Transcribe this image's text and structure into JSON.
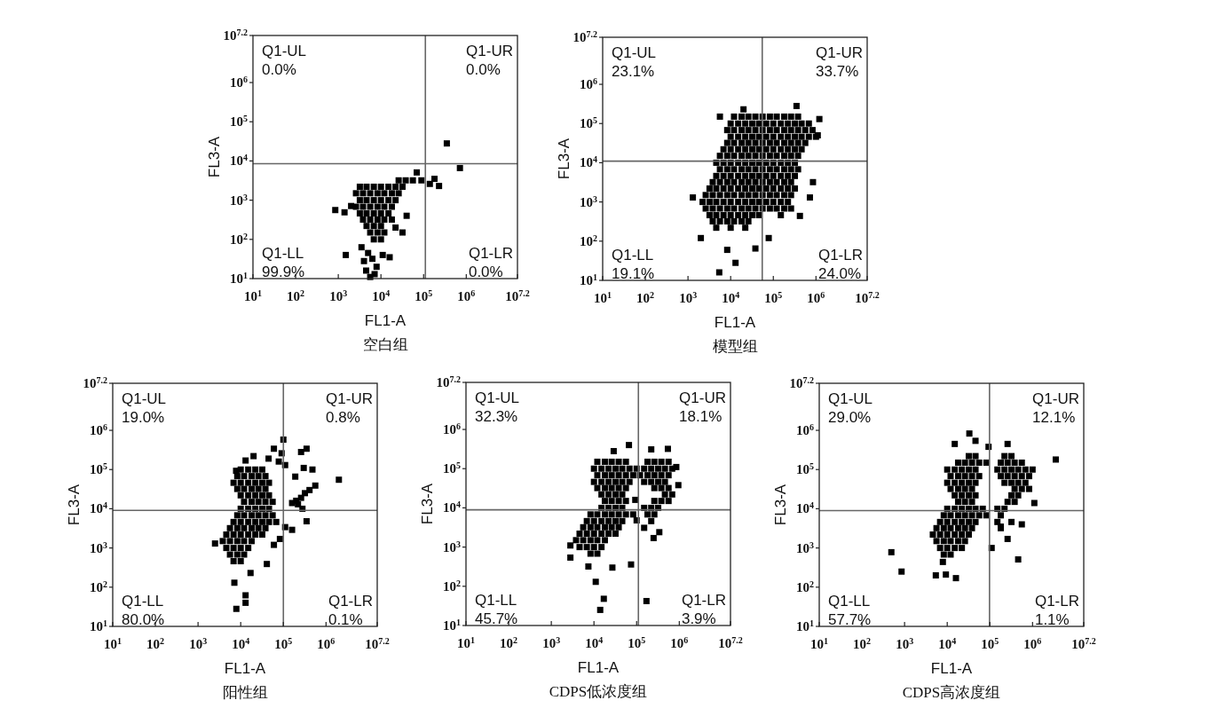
{
  "chart_data": [
    {
      "type": "scatter",
      "title": "空白组",
      "xlabel": "FL1-A",
      "ylabel": "FL3-A",
      "log": "xy",
      "marker": "square",
      "color": "#000000",
      "xlim": [
        10,
        15848932
      ],
      "ylim": [
        10,
        15848932
      ],
      "xticks": [
        {
          "value": 10,
          "label": "10$^{1}$"
        },
        {
          "value": 100,
          "label": "10$^{2}$"
        },
        {
          "value": 1000,
          "label": "10$^{3}$"
        },
        {
          "value": 10000,
          "label": "10$^{4}$"
        },
        {
          "value": 100000,
          "label": "10$^{5}$"
        },
        {
          "value": 1000000,
          "label": "10$^{6}$"
        },
        {
          "value": 15848932,
          "label": "10$^{7.2}$"
        }
      ],
      "yticks": [
        {
          "value": 10,
          "label": "10$^{1}$"
        },
        {
          "value": 100,
          "label": "10$^{2}$"
        },
        {
          "value": 1000,
          "label": "10$^{3}$"
        },
        {
          "value": 10000,
          "label": "10$^{4}$"
        },
        {
          "value": 100000,
          "label": "10$^{5}$"
        },
        {
          "value": 1000000,
          "label": "10$^{6}$"
        },
        {
          "value": 15848932,
          "label": "10$^{7.2}$"
        }
      ],
      "ref_lines": [
        {
          "axis": "x",
          "value": 110000.0,
          "color": "#666666"
        },
        {
          "axis": "y",
          "value": 8500.0,
          "color": "#666666"
        }
      ],
      "annotations": [
        "Q1-UL\n0.0%",
        "Q1-UR\n0.0%",
        "Q1-LL\n99.9%",
        "Q1-LR\n0.0%"
      ],
      "x": [
        26000.0,
        38000.0,
        56000.0,
        3200.0,
        4600.0,
        6800.0,
        10000.0,
        15000.0,
        22000.0,
        32000.0,
        2600.0,
        3800.0,
        5600.0,
        8300.0,
        12000.0,
        18000.0,
        26000.0,
        3200.0,
        4600.0,
        6800.0,
        10000.0,
        15000.0,
        22000.0,
        2600.0,
        3800.0,
        5600.0,
        8300.0,
        12000.0,
        18000.0,
        3200.0,
        4600.0,
        6800.0,
        10000.0,
        15000.0,
        3800.0,
        5600.0,
        8300.0,
        12000.0,
        18000.0,
        4600.0,
        6800.0,
        10000.0,
        5600.0,
        8300.0,
        12000.0,
        6800.0,
        10000.0,
        3500.0,
        5000.0,
        4000.0,
        6300.0,
        7900.0,
        4500.0,
        7100.0,
        11000.0,
        16000.0,
        5600.0,
        850,
        1400.0,
        1500.0,
        350000.0,
        710000.0,
        180000.0,
        230000.0,
        140000.0,
        69000.0,
        32000.0,
        89000.0,
        40000.0,
        22000.0,
        2000.0
      ],
      "values": [
        3200.0,
        3200.0,
        3200.0,
        2200.0,
        2200.0,
        2200.0,
        2200.0,
        2200.0,
        2200.0,
        2200.0,
        1500.0,
        1500.0,
        1500.0,
        1500.0,
        1500.0,
        1500.0,
        1500.0,
        1000.0,
        1000.0,
        1000.0,
        1000.0,
        1000.0,
        1000.0,
        680,
        680,
        680,
        680,
        680,
        680,
        460,
        460,
        460,
        460,
        460,
        320,
        320,
        320,
        320,
        320,
        220,
        220,
        220,
        150,
        150,
        150,
        100,
        100,
        63,
        45,
        28,
        32,
        20,
        16,
        13,
        40,
        35,
        11,
        560,
        490,
        40,
        28000.0,
        6600.0,
        3500.0,
        2300.0,
        2600.0,
        5100.0,
        150,
        3200.0,
        400,
        200,
        710
      ]
    },
    {
      "type": "scatter",
      "title": "模型组",
      "xlabel": "FL1-A",
      "ylabel": "FL3-A",
      "log": "xy",
      "marker": "square",
      "color": "#000000",
      "xlim": [
        10,
        15848932
      ],
      "ylim": [
        10,
        15848932
      ],
      "xticks": [
        {
          "value": 10,
          "label": "10$^{1}$"
        },
        {
          "value": 100,
          "label": "10$^{2}$"
        },
        {
          "value": 1000,
          "label": "10$^{3}$"
        },
        {
          "value": 10000,
          "label": "10$^{4}$"
        },
        {
          "value": 100000,
          "label": "10$^{5}$"
        },
        {
          "value": 1000000,
          "label": "10$^{6}$"
        },
        {
          "value": 15848932,
          "label": "10$^{7.2}$"
        }
      ],
      "yticks": [
        {
          "value": 10,
          "label": "10$^{1}$"
        },
        {
          "value": 100,
          "label": "10$^{2}$"
        },
        {
          "value": 1000,
          "label": "10$^{3}$"
        },
        {
          "value": 10000,
          "label": "10$^{4}$"
        },
        {
          "value": 100000,
          "label": "10$^{5}$"
        },
        {
          "value": 1000000,
          "label": "10$^{6}$"
        },
        {
          "value": 15848932,
          "label": "10$^{7.2}$"
        }
      ],
      "ref_lines": [
        {
          "axis": "x",
          "value": 55000.0,
          "color": "#666666"
        },
        {
          "axis": "y",
          "value": 11000.0,
          "color": "#666666"
        }
      ],
      "annotations": [
        "Q1-UL\n23.1%",
        "Q1-UR\n33.7%",
        "Q1-LL\n19.1%",
        "Q1-LR\n24.0%"
      ],
      "x": [
        12000.0,
        18000.0,
        26000.0,
        38000.0,
        56000.0,
        83000.0,
        120000.0,
        180000.0,
        260000.0,
        380000.0,
        10000.0,
        15000.0,
        22000.0,
        32000.0,
        46000.0,
        68000.0,
        100000.0,
        150000.0,
        220000.0,
        320000.0,
        460000.0,
        680000.0,
        8300.0,
        12000.0,
        18000.0,
        26000.0,
        38000.0,
        56000.0,
        83000.0,
        120000.0,
        180000.0,
        260000.0,
        380000.0,
        560000.0,
        830000.0,
        10000.0,
        15000.0,
        22000.0,
        32000.0,
        46000.0,
        68000.0,
        100000.0,
        150000.0,
        220000.0,
        320000.0,
        460000.0,
        680000.0,
        1000000.0,
        8300.0,
        12000.0,
        18000.0,
        26000.0,
        38000.0,
        56000.0,
        83000.0,
        120000.0,
        180000.0,
        260000.0,
        380000.0,
        560000.0,
        6800.0,
        10000.0,
        15000.0,
        22000.0,
        32000.0,
        46000.0,
        68000.0,
        100000.0,
        150000.0,
        220000.0,
        320000.0,
        460000.0,
        5600.0,
        8300.0,
        12000.0,
        18000.0,
        26000.0,
        38000.0,
        56000.0,
        83000.0,
        120000.0,
        180000.0,
        260000.0,
        380000.0,
        4600.0,
        6800.0,
        10000.0,
        15000.0,
        22000.0,
        32000.0,
        46000.0,
        68000.0,
        100000.0,
        150000.0,
        220000.0,
        320000.0,
        5600.0,
        8300.0,
        12000.0,
        18000.0,
        26000.0,
        38000.0,
        56000.0,
        83000.0,
        120000.0,
        180000.0,
        260000.0,
        380000.0,
        4600.0,
        6800.0,
        10000.0,
        15000.0,
        22000.0,
        32000.0,
        46000.0,
        68000.0,
        100000.0,
        150000.0,
        220000.0,
        320000.0,
        3800.0,
        5600.0,
        8300.0,
        12000.0,
        18000.0,
        26000.0,
        38000.0,
        56000.0,
        83000.0,
        120000.0,
        180000.0,
        260000.0,
        3200.0,
        4600.0,
        6800.0,
        10000.0,
        15000.0,
        22000.0,
        32000.0,
        46000.0,
        68000.0,
        100000.0,
        150000.0,
        220000.0,
        320000.0,
        2600.0,
        3800.0,
        5600.0,
        8300.0,
        12000.0,
        18000.0,
        26000.0,
        38000.0,
        56000.0,
        83000.0,
        120000.0,
        180000.0,
        260000.0,
        2200.0,
        3200.0,
        4600.0,
        6800.0,
        10000.0,
        15000.0,
        22000.0,
        32000.0,
        46000.0,
        68000.0,
        100000.0,
        150000.0,
        220000.0,
        2600.0,
        3800.0,
        5600.0,
        8300.0,
        12000.0,
        18000.0,
        26000.0,
        38000.0,
        56000.0,
        83000.0,
        120000.0,
        180000.0,
        260000.0,
        3200.0,
        4600.0,
        6800.0,
        10000.0,
        15000.0,
        22000.0,
        32000.0,
        46000.0,
        150000.0,
        3800.0,
        5600.0,
        8300.0,
        12000.0,
        18000.0,
        26000.0,
        4600.0,
        10000.0,
        22000.0,
        1300.0,
        2000.0,
        8300.0,
        13000.0,
        5400.0,
        38000.0,
        20000.0,
        350000.0,
        78000.0,
        850000.0,
        720000.0,
        420000.0,
        5600.0,
        1200000.0,
        1100000.0
      ],
      "values": [
        150000.0,
        150000.0,
        150000.0,
        150000.0,
        150000.0,
        150000.0,
        150000.0,
        150000.0,
        150000.0,
        150000.0,
        100000.0,
        100000.0,
        100000.0,
        100000.0,
        100000.0,
        100000.0,
        100000.0,
        100000.0,
        100000.0,
        100000.0,
        100000.0,
        100000.0,
        68000.0,
        68000.0,
        68000.0,
        68000.0,
        68000.0,
        68000.0,
        68000.0,
        68000.0,
        68000.0,
        68000.0,
        68000.0,
        68000.0,
        68000.0,
        46000.0,
        46000.0,
        46000.0,
        46000.0,
        46000.0,
        46000.0,
        46000.0,
        46000.0,
        46000.0,
        46000.0,
        46000.0,
        46000.0,
        46000.0,
        32000.0,
        32000.0,
        32000.0,
        32000.0,
        32000.0,
        32000.0,
        32000.0,
        32000.0,
        32000.0,
        32000.0,
        32000.0,
        32000.0,
        22000.0,
        22000.0,
        22000.0,
        22000.0,
        22000.0,
        22000.0,
        22000.0,
        22000.0,
        22000.0,
        22000.0,
        22000.0,
        22000.0,
        15000.0,
        15000.0,
        15000.0,
        15000.0,
        15000.0,
        15000.0,
        15000.0,
        15000.0,
        15000.0,
        15000.0,
        15000.0,
        15000.0,
        10000.0,
        10000.0,
        10000.0,
        10000.0,
        10000.0,
        10000.0,
        10000.0,
        10000.0,
        10000.0,
        10000.0,
        10000.0,
        10000.0,
        6800.0,
        6800.0,
        6800.0,
        6800.0,
        6800.0,
        6800.0,
        6800.0,
        6800.0,
        6800.0,
        6800.0,
        6800.0,
        6800.0,
        4600.0,
        4600.0,
        4600.0,
        4600.0,
        4600.0,
        4600.0,
        4600.0,
        4600.0,
        4600.0,
        4600.0,
        4600.0,
        4600.0,
        3200.0,
        3200.0,
        3200.0,
        3200.0,
        3200.0,
        3200.0,
        3200.0,
        3200.0,
        3200.0,
        3200.0,
        3200.0,
        3200.0,
        2200.0,
        2200.0,
        2200.0,
        2200.0,
        2200.0,
        2200.0,
        2200.0,
        2200.0,
        2200.0,
        2200.0,
        2200.0,
        2200.0,
        2200.0,
        1500.0,
        1500.0,
        1500.0,
        1500.0,
        1500.0,
        1500.0,
        1500.0,
        1500.0,
        1500.0,
        1500.0,
        1500.0,
        1500.0,
        1500.0,
        1000.0,
        1000.0,
        1000.0,
        1000.0,
        1000.0,
        1000.0,
        1000.0,
        1000.0,
        1000.0,
        1000.0,
        1000.0,
        1000.0,
        1000.0,
        680,
        680,
        680,
        680,
        680,
        680,
        680,
        680,
        680,
        680,
        680,
        680,
        680,
        460,
        460,
        460,
        460,
        460,
        460,
        460,
        460,
        460,
        320,
        320,
        320,
        320,
        320,
        320,
        220,
        220,
        220,
        1300.0,
        120,
        60,
        28,
        16,
        65,
        230000.0,
        280000.0,
        120,
        3200.0,
        1300.0,
        440,
        150000.0,
        130000.0,
        50000.0
      ]
    },
    {
      "type": "scatter",
      "title": "阳性组",
      "xlabel": "FL1-A",
      "ylabel": "FL3-A",
      "log": "xy",
      "marker": "square",
      "color": "#000000",
      "xlim": [
        10,
        15848932
      ],
      "ylim": [
        10,
        15848932
      ],
      "xticks": [
        {
          "value": 10,
          "label": "10$^{1}$"
        },
        {
          "value": 100,
          "label": "10$^{2}$"
        },
        {
          "value": 1000,
          "label": "10$^{3}$"
        },
        {
          "value": 10000,
          "label": "10$^{4}$"
        },
        {
          "value": 100000,
          "label": "10$^{5}$"
        },
        {
          "value": 1000000,
          "label": "10$^{6}$"
        },
        {
          "value": 15848932,
          "label": "10$^{7.2}$"
        }
      ],
      "yticks": [
        {
          "value": 10,
          "label": "10$^{1}$"
        },
        {
          "value": 100,
          "label": "10$^{2}$"
        },
        {
          "value": 1000,
          "label": "10$^{3}$"
        },
        {
          "value": 10000,
          "label": "10$^{4}$"
        },
        {
          "value": 100000,
          "label": "10$^{5}$"
        },
        {
          "value": 1000000,
          "label": "10$^{6}$"
        },
        {
          "value": 15848932,
          "label": "10$^{7.2}$"
        }
      ],
      "ref_lines": [
        {
          "axis": "x",
          "value": 100000.0,
          "color": "#666666"
        },
        {
          "axis": "y",
          "value": 9100.0,
          "color": "#666666"
        }
      ],
      "annotations": [
        "Q1-UL\n19.0%",
        "Q1-UR\n0.8%",
        "Q1-LL\n80.0%",
        "Q1-LR\n0.1%"
      ],
      "x": [
        10000.0,
        15000.0,
        22000.0,
        32000.0,
        8300.0,
        12000.0,
        18000.0,
        26000.0,
        38000.0,
        6800.0,
        10000.0,
        15000.0,
        22000.0,
        32000.0,
        46000.0,
        8300.0,
        12000.0,
        18000.0,
        26000.0,
        38000.0,
        10000.0,
        15000.0,
        22000.0,
        32000.0,
        46000.0,
        12000.0,
        18000.0,
        26000.0,
        38000.0,
        56000.0,
        10000.0,
        15000.0,
        22000.0,
        32000.0,
        46000.0,
        8300.0,
        12000.0,
        18000.0,
        26000.0,
        38000.0,
        56000.0,
        6800.0,
        10000.0,
        15000.0,
        22000.0,
        32000.0,
        46000.0,
        68000.0,
        5600.0,
        8300.0,
        12000.0,
        18000.0,
        26000.0,
        38000.0,
        4600.0,
        6800.0,
        10000.0,
        15000.0,
        22000.0,
        32000.0,
        3800.0,
        5600.0,
        8300.0,
        12000.0,
        18000.0,
        4600.0,
        6800.0,
        10000.0,
        15000.0,
        5600.0,
        8300.0,
        12000.0,
        6800.0,
        10000.0,
        2500.0,
        7100.0,
        13000.0,
        13000.0,
        7900.0,
        41000.0,
        17000.0,
        100000.0,
        60000.0,
        91000.0,
        260000.0,
        350000.0,
        480000.0,
        300000.0,
        110000.0,
        190000.0,
        2000000.0,
        560000.0,
        160000.0,
        200000.0,
        260000.0,
        320000.0,
        410000.0,
        220000.0,
        280000.0,
        350000.0,
        110000.0,
        160000.0,
        83000.0,
        60000.0,
        78000.0,
        45000.0,
        20000.0,
        13000.0,
        7800.0
      ],
      "values": [
        100000.0,
        100000.0,
        100000.0,
        100000.0,
        68000.0,
        68000.0,
        68000.0,
        68000.0,
        68000.0,
        46000.0,
        46000.0,
        46000.0,
        46000.0,
        46000.0,
        46000.0,
        32000.0,
        32000.0,
        32000.0,
        32000.0,
        32000.0,
        22000.0,
        22000.0,
        22000.0,
        22000.0,
        22000.0,
        15000.0,
        15000.0,
        15000.0,
        15000.0,
        15000.0,
        10000.0,
        10000.0,
        10000.0,
        10000.0,
        10000.0,
        6800.0,
        6800.0,
        6800.0,
        6800.0,
        6800.0,
        6800.0,
        4600.0,
        4600.0,
        4600.0,
        4600.0,
        4600.0,
        4600.0,
        4600.0,
        3200.0,
        3200.0,
        3200.0,
        3200.0,
        3200.0,
        3200.0,
        2200.0,
        2200.0,
        2200.0,
        2200.0,
        2200.0,
        2200.0,
        1500.0,
        1500.0,
        1500.0,
        1500.0,
        1500.0,
        1000.0,
        1000.0,
        1000.0,
        1000.0,
        680,
        680,
        680,
        460,
        460,
        1300.0,
        130,
        62,
        40,
        28,
        390,
        230,
        580000.0,
        340000.0,
        260000.0,
        280000.0,
        340000.0,
        100000.0,
        110000.0,
        130000.0,
        66000.0,
        55000.0,
        39000.0,
        14000.0,
        16000.0,
        19000.0,
        25000.0,
        30000.0,
        13000.0,
        10000.0,
        4800.0,
        3400.0,
        2900.0,
        1700.0,
        1200.0,
        160000.0,
        190000.0,
        220000.0,
        170000.0,
        93000.0
      ]
    },
    {
      "type": "scatter",
      "title": "CDPS低浓度组",
      "xlabel": "FL1-A",
      "ylabel": "FL3-A",
      "log": "xy",
      "marker": "square",
      "color": "#000000",
      "xlim": [
        10,
        15848932
      ],
      "ylim": [
        10,
        15848932
      ],
      "xticks": [
        {
          "value": 10,
          "label": "10$^{1}$"
        },
        {
          "value": 100,
          "label": "10$^{2}$"
        },
        {
          "value": 1000,
          "label": "10$^{3}$"
        },
        {
          "value": 10000,
          "label": "10$^{4}$"
        },
        {
          "value": 100000,
          "label": "10$^{5}$"
        },
        {
          "value": 1000000,
          "label": "10$^{6}$"
        },
        {
          "value": 15848932,
          "label": "10$^{7.2}$"
        }
      ],
      "yticks": [
        {
          "value": 10,
          "label": "10$^{1}$"
        },
        {
          "value": 100,
          "label": "10$^{2}$"
        },
        {
          "value": 1000,
          "label": "10$^{3}$"
        },
        {
          "value": 10000,
          "label": "10$^{4}$"
        },
        {
          "value": 100000,
          "label": "10$^{5}$"
        },
        {
          "value": 1000000,
          "label": "10$^{6}$"
        },
        {
          "value": 15848932,
          "label": "10$^{7.2}$"
        }
      ],
      "ref_lines": [
        {
          "axis": "x",
          "value": 110000.0,
          "color": "#666666"
        },
        {
          "axis": "y",
          "value": 8900.0,
          "color": "#666666"
        }
      ],
      "annotations": [
        "Q1-UL\n32.3%",
        "Q1-UR\n18.1%",
        "Q1-LL\n45.7%",
        "Q1-LR\n3.9%"
      ],
      "x": [
        12000.0,
        18000.0,
        26000.0,
        38000.0,
        56000.0,
        180000.0,
        260000.0,
        380000.0,
        560000.0,
        10000.0,
        15000.0,
        22000.0,
        32000.0,
        46000.0,
        68000.0,
        100000.0,
        150000.0,
        220000.0,
        320000.0,
        460000.0,
        680000.0,
        12000.0,
        18000.0,
        26000.0,
        38000.0,
        56000.0,
        83000.0,
        120000.0,
        180000.0,
        260000.0,
        380000.0,
        560000.0,
        10000.0,
        15000.0,
        22000.0,
        32000.0,
        46000.0,
        68000.0,
        150000.0,
        220000.0,
        320000.0,
        460000.0,
        12000.0,
        18000.0,
        26000.0,
        38000.0,
        56000.0,
        260000.0,
        380000.0,
        560000.0,
        15000.0,
        22000.0,
        32000.0,
        46000.0,
        460000.0,
        680000.0,
        18000.0,
        26000.0,
        38000.0,
        56000.0,
        260000.0,
        380000.0,
        560000.0,
        15000.0,
        22000.0,
        32000.0,
        46000.0,
        150000.0,
        220000.0,
        320000.0,
        8300.0,
        12000.0,
        18000.0,
        26000.0,
        38000.0,
        56000.0,
        83000.0,
        180000.0,
        260000.0,
        6800.0,
        10000.0,
        15000.0,
        22000.0,
        32000.0,
        46000.0,
        220000.0,
        5600.0,
        8300.0,
        12000.0,
        18000.0,
        26000.0,
        38000.0,
        4600.0,
        6800.0,
        10000.0,
        15000.0,
        22000.0,
        32000.0,
        3800.0,
        5600.0,
        8300.0,
        12000.0,
        18000.0,
        4600.0,
        6800.0,
        10000.0,
        15000.0,
        8300.0,
        12000.0,
        2800.0,
        2800.0,
        7400.0,
        27000.0,
        74000.0,
        11000.0,
        17000.0,
        14000.0,
        170000.0,
        66000.0,
        29000.0,
        220000.0,
        540000.0,
        850000.0,
        950000.0,
        250000.0,
        150000.0,
        100000.0,
        93000.0,
        340000.0
      ],
      "values": [
        150000.0,
        150000.0,
        150000.0,
        150000.0,
        150000.0,
        150000.0,
        150000.0,
        150000.0,
        150000.0,
        100000.0,
        100000.0,
        100000.0,
        100000.0,
        100000.0,
        100000.0,
        100000.0,
        100000.0,
        100000.0,
        100000.0,
        100000.0,
        100000.0,
        68000.0,
        68000.0,
        68000.0,
        68000.0,
        68000.0,
        68000.0,
        68000.0,
        68000.0,
        68000.0,
        68000.0,
        68000.0,
        46000.0,
        46000.0,
        46000.0,
        46000.0,
        46000.0,
        46000.0,
        46000.0,
        46000.0,
        46000.0,
        46000.0,
        32000.0,
        32000.0,
        32000.0,
        32000.0,
        32000.0,
        32000.0,
        32000.0,
        32000.0,
        22000.0,
        22000.0,
        22000.0,
        22000.0,
        22000.0,
        22000.0,
        15000.0,
        15000.0,
        15000.0,
        15000.0,
        15000.0,
        15000.0,
        15000.0,
        10000.0,
        10000.0,
        10000.0,
        10000.0,
        10000.0,
        10000.0,
        10000.0,
        6800.0,
        6800.0,
        6800.0,
        6800.0,
        6800.0,
        6800.0,
        6800.0,
        6800.0,
        6800.0,
        4600.0,
        4600.0,
        4600.0,
        4600.0,
        4600.0,
        4600.0,
        4600.0,
        3200.0,
        3200.0,
        3200.0,
        3200.0,
        3200.0,
        3200.0,
        2200.0,
        2200.0,
        2200.0,
        2200.0,
        2200.0,
        2200.0,
        1500.0,
        1500.0,
        1500.0,
        1500.0,
        1500.0,
        1000.0,
        1000.0,
        1000.0,
        1000.0,
        680,
        680,
        1100.0,
        540,
        320,
        300,
        360,
        130,
        48,
        25,
        42,
        400000.0,
        280000.0,
        310000.0,
        320000.0,
        110000.0,
        38000.0,
        1700.0,
        3100.0,
        4800.0,
        16000.0,
        2400.0
      ]
    },
    {
      "type": "scatter",
      "title": "CDPS高浓度组",
      "xlabel": "FL1-A",
      "ylabel": "FL3-A",
      "log": "xy",
      "marker": "square",
      "color": "#000000",
      "xlim": [
        10,
        15848932
      ],
      "ylim": [
        10,
        15848932
      ],
      "xticks": [
        {
          "value": 10,
          "label": "10$^{1}$"
        },
        {
          "value": 100,
          "label": "10$^{2}$"
        },
        {
          "value": 1000,
          "label": "10$^{3}$"
        },
        {
          "value": 10000,
          "label": "10$^{4}$"
        },
        {
          "value": 100000,
          "label": "10$^{5}$"
        },
        {
          "value": 1000000,
          "label": "10$^{6}$"
        },
        {
          "value": 15848932,
          "label": "10$^{7.2}$"
        }
      ],
      "yticks": [
        {
          "value": 10,
          "label": "10$^{1}$"
        },
        {
          "value": 100,
          "label": "10$^{2}$"
        },
        {
          "value": 1000,
          "label": "10$^{3}$"
        },
        {
          "value": 10000,
          "label": "10$^{4}$"
        },
        {
          "value": 100000,
          "label": "10$^{5}$"
        },
        {
          "value": 1000000,
          "label": "10$^{6}$"
        },
        {
          "value": 15848932,
          "label": "10$^{7.2}$"
        }
      ],
      "ref_lines": [
        {
          "axis": "x",
          "value": 98000.0,
          "color": "#666666"
        },
        {
          "axis": "y",
          "value": 9000.0,
          "color": "#666666"
        }
      ],
      "annotations": [
        "Q1-UL\n29.0%",
        "Q1-UR\n12.1%",
        "Q1-LL\n57.7%",
        "Q1-LR\n1.1%"
      ],
      "x": [
        32000.0,
        46000.0,
        220000.0,
        320000.0,
        18000.0,
        26000.0,
        38000.0,
        56000.0,
        83000.0,
        180000.0,
        260000.0,
        380000.0,
        560000.0,
        10000.0,
        15000.0,
        22000.0,
        32000.0,
        46000.0,
        150000.0,
        220000.0,
        320000.0,
        460000.0,
        680000.0,
        1000000.0,
        12000.0,
        18000.0,
        26000.0,
        38000.0,
        56000.0,
        180000.0,
        260000.0,
        380000.0,
        560000.0,
        830000.0,
        10000.0,
        15000.0,
        22000.0,
        32000.0,
        46000.0,
        220000.0,
        320000.0,
        460000.0,
        680000.0,
        12000.0,
        18000.0,
        26000.0,
        38000.0,
        380000.0,
        560000.0,
        830000.0,
        15000.0,
        22000.0,
        32000.0,
        46000.0,
        320000.0,
        460000.0,
        18000.0,
        26000.0,
        38000.0,
        260000.0,
        380000.0,
        10000.0,
        15000.0,
        22000.0,
        32000.0,
        46000.0,
        68000.0,
        150000.0,
        220000.0,
        8300.0,
        12000.0,
        18000.0,
        26000.0,
        38000.0,
        56000.0,
        83000.0,
        180000.0,
        6800.0,
        10000.0,
        15000.0,
        22000.0,
        32000.0,
        46000.0,
        150000.0,
        320000.0,
        5600.0,
        8300.0,
        12000.0,
        18000.0,
        26000.0,
        38000.0,
        180000.0,
        4600.0,
        6800.0,
        10000.0,
        15000.0,
        22000.0,
        32000.0,
        5600.0,
        8300.0,
        12000.0,
        18000.0,
        26000.0,
        6800.0,
        10000.0,
        15000.0,
        22000.0,
        8300.0,
        12000.0,
        490,
        850,
        5400.0,
        7900.0,
        9300.0,
        16000.0,
        460000.0,
        560000.0,
        1100000.0,
        3500000.0,
        33000.0,
        15000.0,
        260000.0,
        46000.0,
        93000.0,
        110000.0,
        180000.0,
        260000.0
      ],
      "values": [
        220000.0,
        220000.0,
        220000.0,
        220000.0,
        150000.0,
        150000.0,
        150000.0,
        150000.0,
        150000.0,
        150000.0,
        150000.0,
        150000.0,
        150000.0,
        100000.0,
        100000.0,
        100000.0,
        100000.0,
        100000.0,
        100000.0,
        100000.0,
        100000.0,
        100000.0,
        100000.0,
        100000.0,
        68000.0,
        68000.0,
        68000.0,
        68000.0,
        68000.0,
        68000.0,
        68000.0,
        68000.0,
        68000.0,
        68000.0,
        46000.0,
        46000.0,
        46000.0,
        46000.0,
        46000.0,
        46000.0,
        46000.0,
        46000.0,
        46000.0,
        32000.0,
        32000.0,
        32000.0,
        32000.0,
        32000.0,
        32000.0,
        32000.0,
        22000.0,
        22000.0,
        22000.0,
        22000.0,
        22000.0,
        22000.0,
        15000.0,
        15000.0,
        15000.0,
        15000.0,
        15000.0,
        10000.0,
        10000.0,
        10000.0,
        10000.0,
        10000.0,
        10000.0,
        10000.0,
        10000.0,
        6800.0,
        6800.0,
        6800.0,
        6800.0,
        6800.0,
        6800.0,
        6800.0,
        6800.0,
        4600.0,
        4600.0,
        4600.0,
        4600.0,
        4600.0,
        4600.0,
        4600.0,
        4600.0,
        3200.0,
        3200.0,
        3200.0,
        3200.0,
        3200.0,
        3200.0,
        3200.0,
        2200.0,
        2200.0,
        2200.0,
        2200.0,
        2200.0,
        2200.0,
        1500.0,
        1500.0,
        1500.0,
        1500.0,
        1500.0,
        1000.0,
        1000.0,
        1000.0,
        1000.0,
        680,
        680,
        780,
        250,
        200,
        440,
        210,
        170,
        510,
        4000.0,
        14000.0,
        180000.0,
        830000.0,
        450000.0,
        450000.0,
        540000.0,
        380000.0,
        1000.0,
        3500.0,
        1700.0
      ]
    }
  ]
}
